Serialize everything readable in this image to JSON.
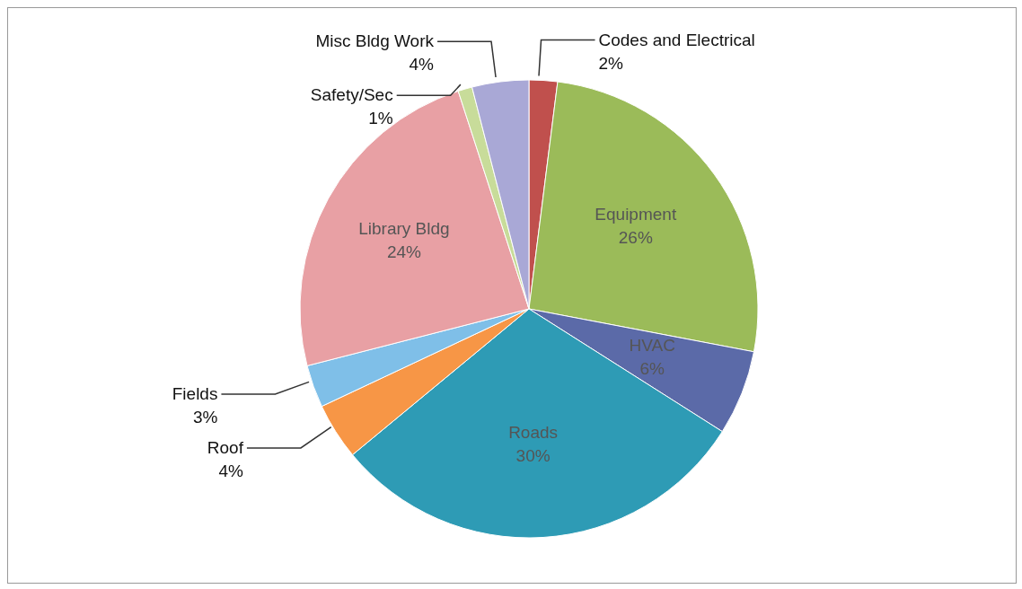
{
  "chart_data": {
    "type": "pie",
    "categories": [
      "Codes and Electrical",
      "Equipment",
      "HVAC",
      "Roads",
      "Roof",
      "Fields",
      "Library Bldg",
      "Safety/Sec",
      "Misc Bldg Work"
    ],
    "values": [
      2,
      26,
      6,
      30,
      4,
      3,
      24,
      1,
      4
    ],
    "value_labels": [
      "2%",
      "26%",
      "6%",
      "30%",
      "4%",
      "3%",
      "24%",
      "1%",
      "4%"
    ],
    "colors": [
      "#c0504d",
      "#9bbb59",
      "#5b6aa8",
      "#2e9bb5",
      "#f79646",
      "#7fbfe8",
      "#e8a0a4",
      "#c8dc9a",
      "#a9a8d6"
    ],
    "legend": false
  }
}
